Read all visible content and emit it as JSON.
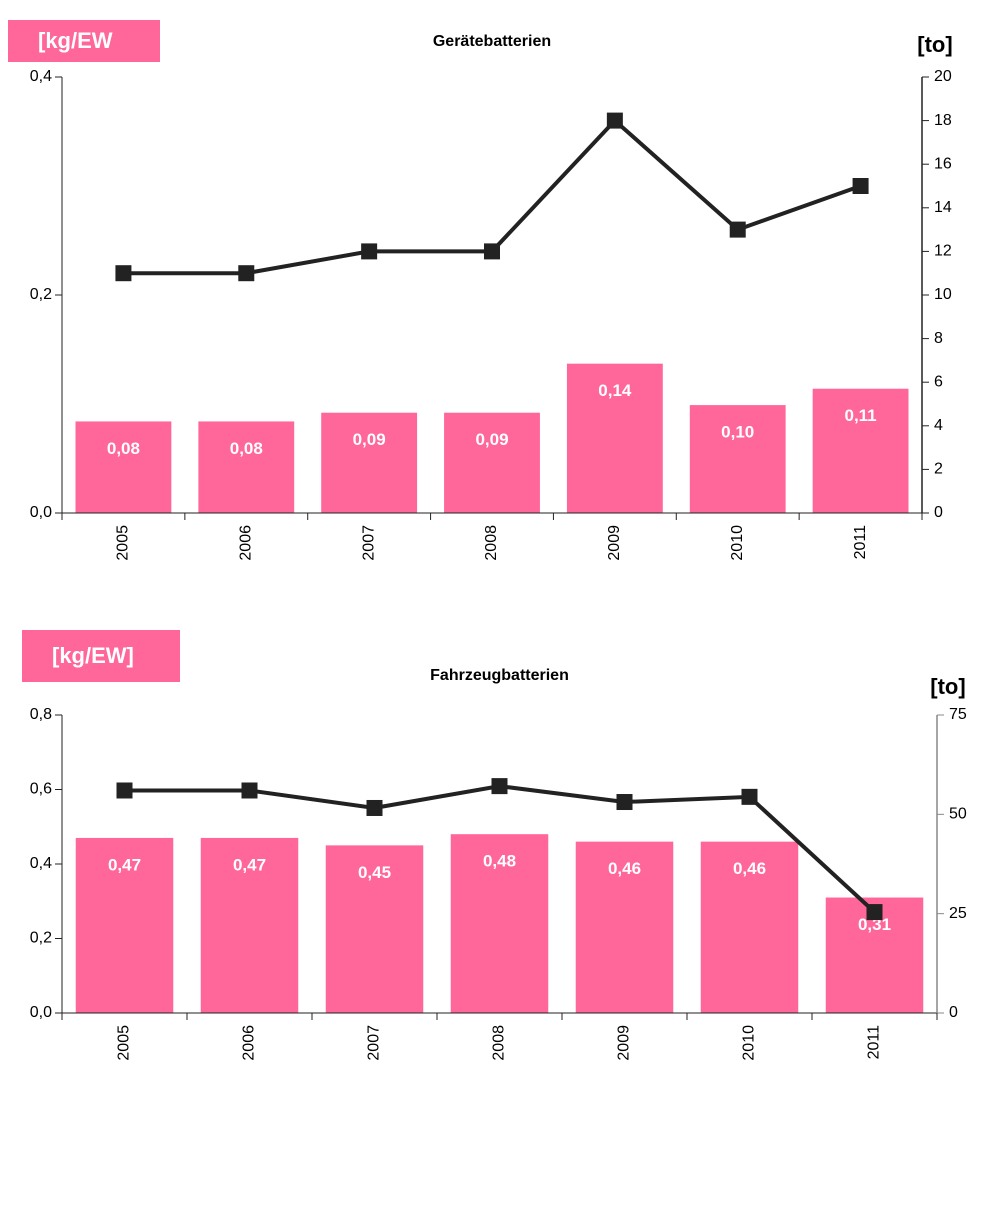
{
  "chart_data": [
    {
      "type": "combo",
      "title": "Gerätebatterien",
      "ylabel": "[kg/EW",
      "y2label": "[to]",
      "categories": [
        "2005",
        "2006",
        "2007",
        "2008",
        "2009",
        "2010",
        "2011"
      ],
      "series": [
        {
          "mark": "bar",
          "color": "#ff6699",
          "values": [
            0.084,
            0.084,
            0.092,
            0.092,
            0.137,
            0.099,
            0.114
          ],
          "value_labels": [
            "0,08",
            "0,08",
            "0,09",
            "0,09",
            "0,14",
            "0,10",
            "0,11"
          ]
        },
        {
          "mark": "line",
          "color": "#222222",
          "axis": "y2",
          "values": [
            11,
            11,
            12,
            12,
            18,
            13,
            15
          ]
        }
      ],
      "ylim": [
        0,
        0.4
      ],
      "yticks": [
        {
          "value": 0,
          "label": "0,0"
        },
        {
          "value": 0.2,
          "label": "0,2"
        },
        {
          "value": 0.4,
          "label": "0,4"
        }
      ],
      "y2lim": [
        0,
        20
      ],
      "y2ticks": [
        0,
        2,
        4,
        6,
        8,
        10,
        12,
        14,
        16,
        18,
        20
      ]
    },
    {
      "type": "combo",
      "title": "Fahrzeugbatterien",
      "ylabel": "[kg/EW]",
      "y2label": "[to]",
      "categories": [
        "2005",
        "2006",
        "2007",
        "2008",
        "2009",
        "2010",
        "2011"
      ],
      "series": [
        {
          "mark": "bar",
          "color": "#ff6699",
          "values": [
            0.47,
            0.47,
            0.45,
            0.48,
            0.46,
            0.46,
            0.31
          ],
          "value_labels": [
            "0,47",
            "0,47",
            "0,45",
            "0,48",
            "0,46",
            "0,46",
            "0,31"
          ]
        },
        {
          "mark": "line",
          "color": "#222222",
          "axis": "y2",
          "values": [
            56,
            56,
            51.6,
            57.1,
            53.1,
            54.4,
            25.4
          ]
        }
      ],
      "ylim": [
        0,
        0.8
      ],
      "yticks": [
        {
          "value": 0,
          "label": "0,0"
        },
        {
          "value": 0.2,
          "label": "0,2"
        },
        {
          "value": 0.4,
          "label": "0,4"
        },
        {
          "value": 0.6,
          "label": "0,6"
        },
        {
          "value": 0.8,
          "label": "0,8"
        }
      ],
      "y2lim": [
        0,
        75
      ],
      "y2ticks": [
        0,
        25,
        50,
        75
      ]
    }
  ]
}
